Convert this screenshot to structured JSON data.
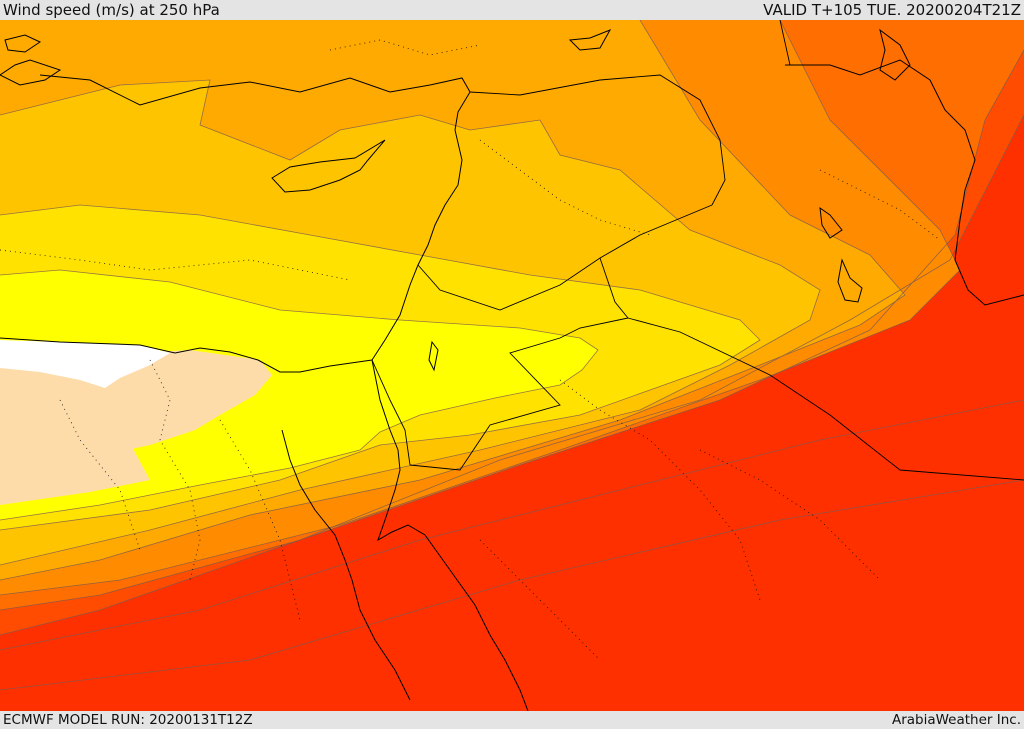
{
  "header": {
    "title": "Wind speed (m/s) at 250 hPa",
    "valid_time": "VALID T+105 TUE. 20200204T21Z"
  },
  "footer": {
    "model_run": "ECMWF MODEL RUN: 20200131T12Z",
    "credit": "ArabiaWeather Inc."
  },
  "map": {
    "field": "wind speed at 250 hPa",
    "region": "Eastern Mediterranean, Egypt, Levant, Arabian Peninsula",
    "colors": {
      "white": "#ffffff",
      "peach": "#fddcaa",
      "bright_yellow": "#ffff00",
      "yellow": "#ffe200",
      "golden": "#ffc400",
      "light_orange": "#ffaa00",
      "orange": "#ff8c00",
      "dark_orange": "#ff6e00",
      "red_orange": "#ff4c00",
      "orange_red": "#ff3000",
      "red": "#ff1a00",
      "deep_red": "#ff0a00"
    }
  }
}
